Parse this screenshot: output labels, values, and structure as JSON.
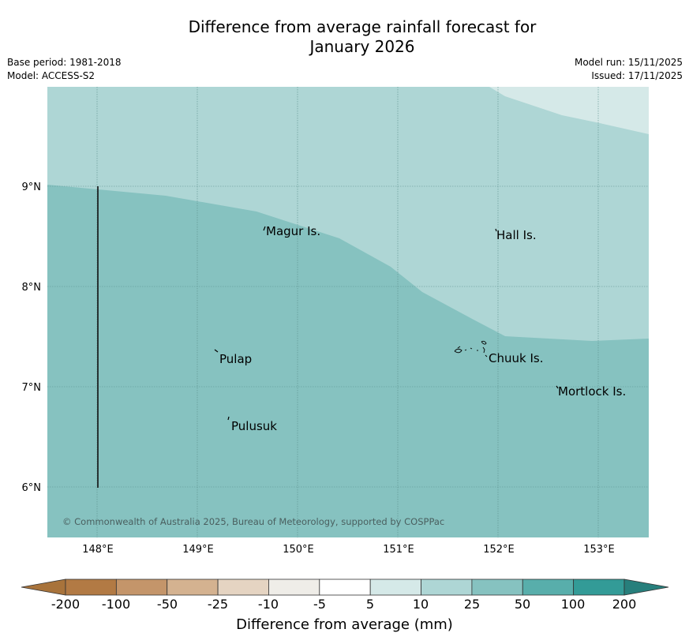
{
  "title": {
    "line1": "Difference from average rainfall forecast for",
    "line2": "January 2026"
  },
  "meta": {
    "base_period": "Base period: 1981-2018",
    "model": "Model: ACCESS-S2",
    "model_run": "Model run: 15/11/2025",
    "issued": "Issued: 17/11/2025"
  },
  "map": {
    "lon_ticks": [
      "148°E",
      "149°E",
      "150°E",
      "151°E",
      "152°E",
      "153°E"
    ],
    "lat_ticks": [
      "9°N",
      "8°N",
      "7°N",
      "6°N"
    ],
    "places": [
      "Magur Is.",
      "Hall Is.",
      "Pulap",
      "Chuuk Is.",
      "Mortlock Is.",
      "Pulusuk"
    ],
    "copyright": "© Commonwealth of Australia 2025, Bureau of Meteorology, supported by COSPPac",
    "colors": {
      "band_5_10": "#d5e9e8",
      "band_10_25": "#aed6d5",
      "band_25_50": "#86c2c0"
    }
  },
  "colorbar": {
    "labels": [
      "-200",
      "-100",
      "-50",
      "-25",
      "-10",
      "-5",
      "5",
      "10",
      "25",
      "50",
      "100",
      "200"
    ],
    "colors": [
      "#a8733b",
      "#b27a44",
      "#c4956a",
      "#d4b290",
      "#e5d4c2",
      "#efede8",
      "#ffffff",
      "#d5e9e8",
      "#aed6d5",
      "#86c2c0",
      "#58aeab",
      "#339b97",
      "#277f7c"
    ],
    "title": "Difference from average (mm)"
  }
}
